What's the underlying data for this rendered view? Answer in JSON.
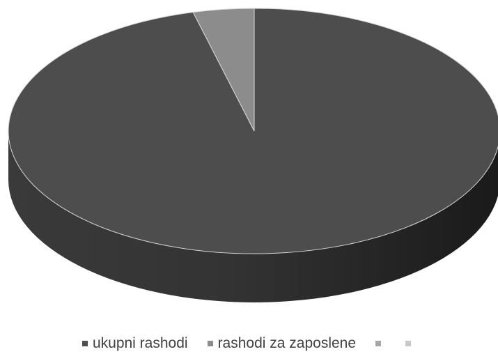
{
  "chart_data": {
    "type": "pie",
    "style": "3d",
    "title": "",
    "legend_position": "bottom",
    "slices": [
      {
        "label": "ukupni rashodi",
        "value": 96.0,
        "color": "#4d4d4d"
      },
      {
        "label": "rashodi za zaposlene",
        "value": 4.0,
        "color": "#8c8c8c"
      },
      {
        "label": "",
        "value": 0,
        "color": "#a6a6a6"
      },
      {
        "label": "",
        "value": 0,
        "color": "#c8c8c8"
      }
    ]
  }
}
